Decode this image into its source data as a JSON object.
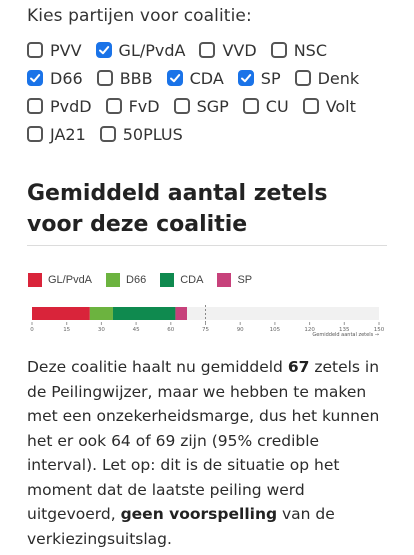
{
  "prompt": "Kies partijen voor coalitie:",
  "parties": [
    [
      {
        "name": "PVV",
        "checked": false
      },
      {
        "name": "GL/PvdA",
        "checked": true
      },
      {
        "name": "VVD",
        "checked": false
      },
      {
        "name": "NSC",
        "checked": false
      }
    ],
    [
      {
        "name": "D66",
        "checked": true
      },
      {
        "name": "BBB",
        "checked": false
      },
      {
        "name": "CDA",
        "checked": true
      },
      {
        "name": "SP",
        "checked": true
      },
      {
        "name": "Denk",
        "checked": false
      }
    ],
    [
      {
        "name": "PvdD",
        "checked": false
      },
      {
        "name": "FvD",
        "checked": false
      },
      {
        "name": "SGP",
        "checked": false
      },
      {
        "name": "CU",
        "checked": false
      },
      {
        "name": "Volt",
        "checked": false
      }
    ],
    [
      {
        "name": "JA21",
        "checked": false
      },
      {
        "name": "50PLUS",
        "checked": false
      }
    ]
  ],
  "section_title": "Gemiddeld aantal zetels voor deze coalitie",
  "colors": {
    "accent": "#1a73e8"
  },
  "chart_data": {
    "type": "bar",
    "orientation": "horizontal-stacked",
    "series": [
      {
        "name": "GL/PvdA",
        "value": 25,
        "color": "#d9243a"
      },
      {
        "name": "D66",
        "value": 10,
        "color": "#6cb33f"
      },
      {
        "name": "CDA",
        "value": 27,
        "color": "#0f8a4f"
      },
      {
        "name": "SP",
        "value": 5,
        "color": "#c7417b"
      }
    ],
    "total": 67,
    "threshold": 75,
    "xlim": [
      0,
      150
    ],
    "ticks": [
      0,
      15,
      30,
      45,
      60,
      75,
      90,
      105,
      120,
      135,
      150
    ],
    "xlabel": "Gemiddeld aantal zetels →"
  },
  "text": {
    "p1": "Deze coalitie haalt nu gemiddeld ",
    "seats": "67",
    "p2": " zetels in de Peilingwijzer, maar we hebben te maken met een onzekerheidsmarge, dus het kunnen het er ook 64 of 69 zijn (95% credible interval). Let op: dit is de situatie op het moment dat de laatste peiling werd uitgevoerd, ",
    "bold2": "geen voorspelling",
    "p3": " van de verkiezingsuitslag."
  }
}
